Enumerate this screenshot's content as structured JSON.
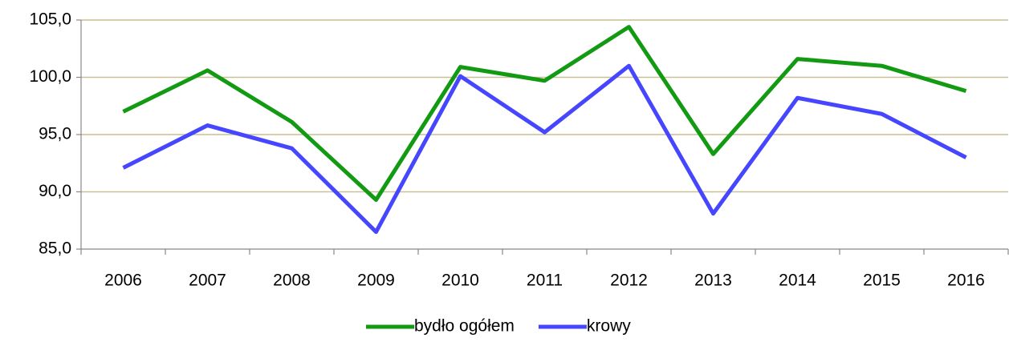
{
  "chart_data": {
    "type": "line",
    "categories": [
      "2006",
      "2007",
      "2008",
      "2009",
      "2010",
      "2011",
      "2012",
      "2013",
      "2014",
      "2015",
      "2016"
    ],
    "series": [
      {
        "name": "bydło ogółem",
        "color": "#129a12",
        "values": [
          97.0,
          100.6,
          96.1,
          89.3,
          100.9,
          99.7,
          104.4,
          93.3,
          101.6,
          101.0,
          98.8
        ]
      },
      {
        "name": "krowy",
        "color": "#4646ff",
        "values": [
          92.1,
          95.8,
          93.8,
          86.5,
          100.1,
          95.2,
          101.0,
          88.1,
          98.2,
          96.8,
          93.0
        ]
      }
    ],
    "ylim": [
      85,
      105
    ],
    "yticks": [
      {
        "value": 85,
        "label": "85,0"
      },
      {
        "value": 90,
        "label": "90,0"
      },
      {
        "value": 95,
        "label": "95,0"
      },
      {
        "value": 100,
        "label": "100,0"
      },
      {
        "value": 105,
        "label": "105,0"
      }
    ],
    "grid": true,
    "legend": "bottom"
  }
}
